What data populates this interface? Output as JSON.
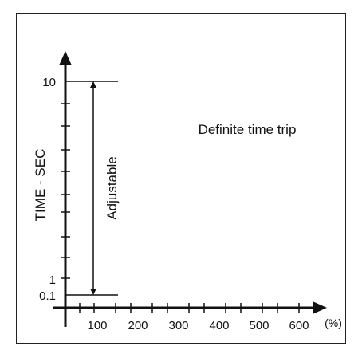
{
  "diagram": {
    "title": "Definite time trip",
    "y_axis_label": "TIME - SEC",
    "x_axis_unit": "(%)",
    "range_label": "Adjustable",
    "y_ticks": [
      "10",
      "1",
      "0.1"
    ],
    "x_ticks": [
      "100",
      "200",
      "300",
      "400",
      "500",
      "600"
    ],
    "line_color": "#111111"
  }
}
